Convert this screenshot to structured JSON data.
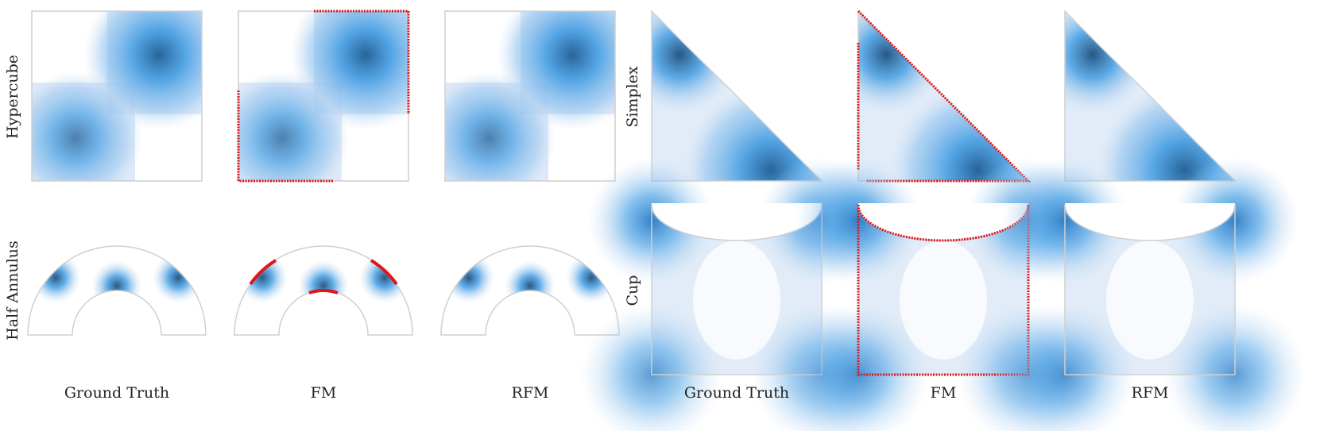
{
  "figure": {
    "colors": {
      "density_low": "#c9dcf3",
      "density_mid": "#3d9ae2",
      "density_high": "#1d5d95",
      "violation": "#e0161a",
      "domain_outline": "#cfcfcf"
    }
  },
  "chart_data": [
    {
      "type": "heatmap",
      "panel": "hypercube",
      "row_label": "Hypercube",
      "domain": "square",
      "xlim": [
        0,
        1
      ],
      "ylim": [
        0,
        1
      ],
      "grid": false,
      "methods": [
        "Ground Truth",
        "FM",
        "RFM"
      ],
      "modes": [
        {
          "x": 0.75,
          "y": 0.75,
          "weight": 1.0
        },
        {
          "x": 0.25,
          "y": 0.25,
          "weight": 0.75
        }
      ],
      "boundary_violations": {
        "Ground Truth": false,
        "FM": true,
        "RFM": false
      }
    },
    {
      "type": "heatmap",
      "panel": "simplex",
      "row_label": "Simplex",
      "domain": "triangle",
      "xlim": [
        0,
        1
      ],
      "ylim": [
        0,
        1
      ],
      "grid": false,
      "methods": [
        "Ground Truth",
        "FM",
        "RFM"
      ],
      "modes": [
        {
          "x": 0.15,
          "y": 0.75,
          "weight": 1.0
        },
        {
          "x": 0.7,
          "y": 0.12,
          "weight": 0.9
        }
      ],
      "boundary_violations": {
        "Ground Truth": false,
        "FM": true,
        "RFM": false
      }
    },
    {
      "type": "heatmap",
      "panel": "half_annulus",
      "row_label": "Half Annulus",
      "domain": "half-annulus",
      "radius_range": [
        0.5,
        1.0
      ],
      "grid": false,
      "methods": [
        "Ground Truth",
        "FM",
        "RFM"
      ],
      "modes": [
        {
          "angle_deg": 150,
          "r": 0.85
        },
        {
          "angle_deg": 90,
          "r": 0.55
        },
        {
          "angle_deg": 30,
          "r": 0.85
        }
      ],
      "boundary_violations": {
        "Ground Truth": false,
        "FM": true,
        "RFM": false
      }
    },
    {
      "type": "heatmap",
      "panel": "cup",
      "row_label": "Cup",
      "domain": "cup",
      "xlim": [
        0,
        1
      ],
      "ylim": [
        0,
        1
      ],
      "grid": false,
      "methods": [
        "Ground Truth",
        "FM",
        "RFM"
      ],
      "modes": [
        {
          "x": 0.0,
          "y": 0.85
        },
        {
          "x": 1.0,
          "y": 0.85
        },
        {
          "x": 0.0,
          "y": 0.1
        },
        {
          "x": 1.0,
          "y": 0.1
        }
      ],
      "boundary_violations": {
        "Ground Truth": false,
        "FM": true,
        "RFM": false
      }
    }
  ],
  "labels": {
    "rows": {
      "hypercube": "Hypercube",
      "simplex": "Simplex",
      "half_annulus": "Half Annulus",
      "cup": "Cup"
    },
    "left_columns": [
      "Ground Truth",
      "FM",
      "RFM"
    ],
    "right_columns": [
      "Ground Truth",
      "FM",
      "RFM"
    ]
  }
}
